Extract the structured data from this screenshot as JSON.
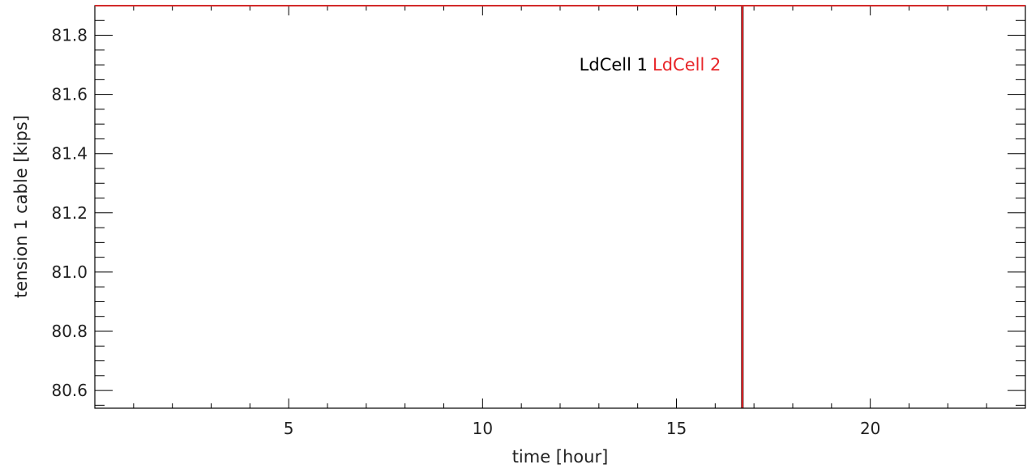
{
  "chart_data": {
    "type": "line",
    "title": "",
    "xlabel": "time [hour]",
    "ylabel": "tension 1 cable [kips]",
    "xlim": [
      0,
      24
    ],
    "ylim": [
      80.54,
      81.9
    ],
    "x_ticks": [
      5,
      10,
      15,
      20
    ],
    "x_tick_labels": [
      "5",
      "10",
      "15",
      "20"
    ],
    "y_ticks": [
      80.6,
      80.8,
      81.0,
      81.2,
      81.4,
      81.6,
      81.8
    ],
    "y_tick_labels": [
      "80.6",
      "80.8",
      "81.0",
      "81.2",
      "81.4",
      "81.6",
      "81.8"
    ],
    "grid": false,
    "legend_position": "top",
    "series": [
      {
        "name": "LdCell 1",
        "color": "#000000",
        "x": [
          16.7,
          16.7
        ],
        "y": [
          80.54,
          81.9
        ]
      },
      {
        "name": "LdCell 2",
        "color": "#e8262a",
        "x": [
          16.7,
          16.7
        ],
        "y": [
          80.54,
          81.9
        ]
      }
    ]
  }
}
